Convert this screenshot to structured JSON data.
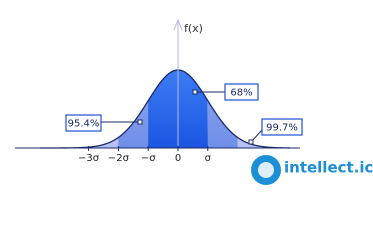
{
  "axis": {
    "y_label": "f(x)",
    "ticks": [
      "−3σ",
      "−2σ",
      "−σ",
      "0",
      "σ"
    ]
  },
  "regions": {
    "one_sigma": "68%",
    "two_sigma": "95.4%",
    "three_sigma": "99.7%"
  },
  "watermark": {
    "text": "intellect.icu"
  }
}
